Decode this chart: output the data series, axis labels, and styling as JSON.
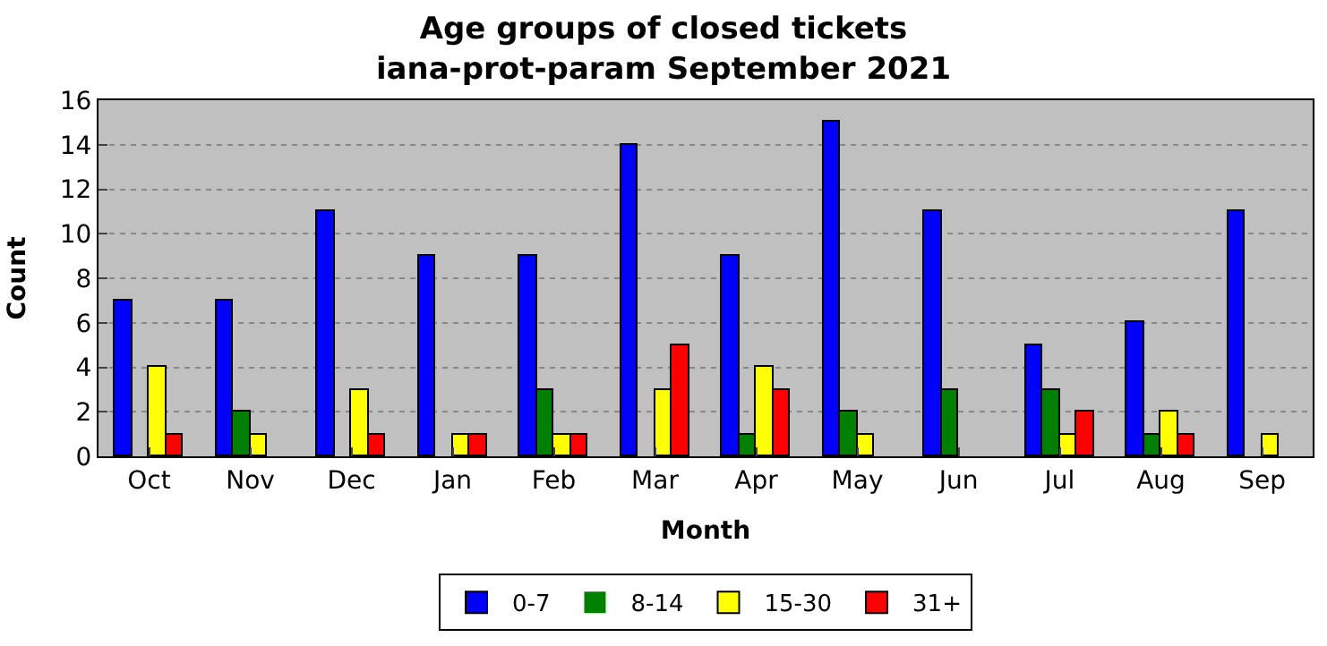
{
  "chart_data": {
    "type": "bar",
    "title": "Age groups of closed tickets",
    "subtitle": "iana-prot-param September 2021",
    "xlabel": "Month",
    "ylabel": "Count",
    "categories": [
      "Oct",
      "Nov",
      "Dec",
      "Jan",
      "Feb",
      "Mar",
      "Apr",
      "May",
      "Jun",
      "Jul",
      "Aug",
      "Sep"
    ],
    "series": [
      {
        "name": "0-7",
        "color": "#0000ff",
        "values": [
          7,
          7,
          11,
          9,
          9,
          14,
          9,
          15,
          11,
          5,
          6,
          11
        ]
      },
      {
        "name": "8-14",
        "color": "#008000",
        "values": [
          0,
          2,
          0,
          0,
          3,
          0,
          1,
          2,
          3,
          3,
          1,
          0
        ]
      },
      {
        "name": "15-30",
        "color": "#ffff00",
        "values": [
          4,
          1,
          3,
          1,
          1,
          3,
          4,
          1,
          0,
          1,
          2,
          1
        ]
      },
      {
        "name": "31+",
        "color": "#ff0000",
        "values": [
          1,
          0,
          1,
          1,
          1,
          5,
          3,
          0,
          0,
          2,
          1,
          0
        ]
      }
    ],
    "ylim": [
      0,
      16
    ],
    "yticks": [
      0,
      2,
      4,
      6,
      8,
      10,
      12,
      14,
      16
    ],
    "grid": "y",
    "legend": "bottom"
  }
}
